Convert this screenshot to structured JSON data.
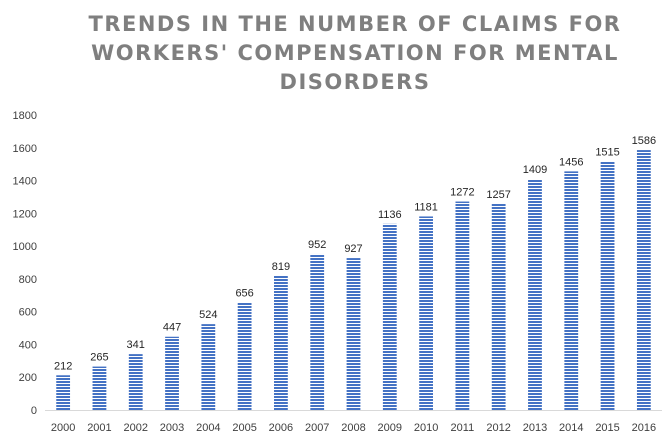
{
  "chart_data": {
    "type": "bar",
    "title_lines": [
      "TRENDS IN THE NUMBER OF CLAIMS FOR",
      "WORKERS' COMPENSATION FOR MENTAL",
      "DISORDERS"
    ],
    "categories": [
      "2000",
      "2001",
      "2002",
      "2003",
      "2004",
      "2005",
      "2006",
      "2007",
      "2008",
      "2009",
      "2010",
      "2011",
      "2012",
      "2013",
      "2014",
      "2015",
      "2016"
    ],
    "values": [
      212,
      265,
      341,
      447,
      524,
      656,
      819,
      952,
      927,
      1136,
      1181,
      1272,
      1257,
      1409,
      1456,
      1515,
      1586
    ],
    "ylim": [
      0,
      1800
    ],
    "yticks": [
      0,
      200,
      400,
      600,
      800,
      1000,
      1200,
      1400,
      1600,
      1800
    ],
    "xlabel": "",
    "ylabel": "",
    "grid": false,
    "legend": "none",
    "bar_color": "#4472c4",
    "bar_stripe_color": "#ffffff",
    "axis_color": "#d9d9d9"
  }
}
